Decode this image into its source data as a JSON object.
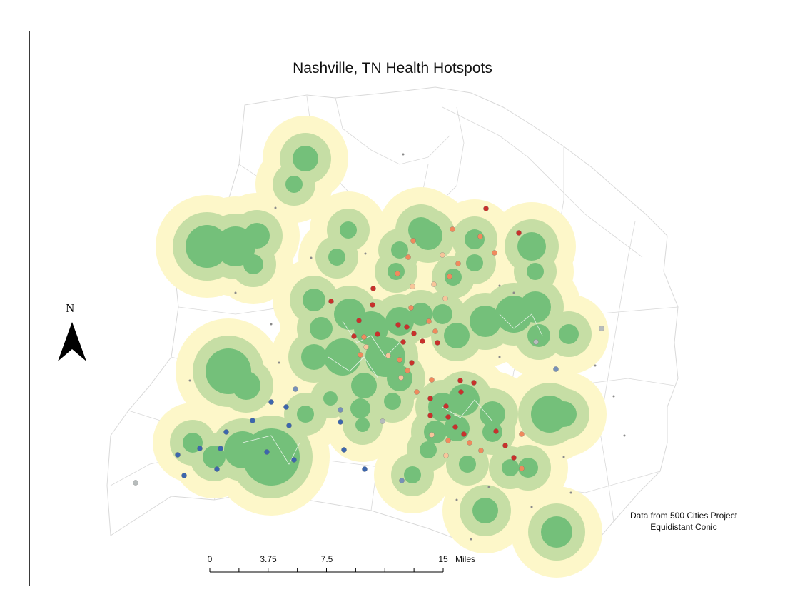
{
  "map": {
    "title": "Nashville, TN Health Hotspots",
    "credits": [
      "Data from 500 Cities Project",
      "Equidistant Conic"
    ],
    "north_arrow": {
      "label": "N"
    },
    "scale_bar": {
      "ticks": [
        "0",
        "3.75",
        "7.5",
        "15"
      ],
      "unit": "Miles"
    },
    "colors": {
      "buffer_outer": "#fdf7c9",
      "buffer_middle": "#c6dea5",
      "hotspot_core": "#74c07a",
      "tract_outline": "#d9d9d9",
      "high_value": "#c8312b",
      "mid_high_value": "#f08a5d",
      "mid_value": "#f7c59a",
      "neutral_value": "#b7bcbc",
      "low_value": "#7790b8",
      "lowest_value": "#3c66ad"
    }
  }
}
